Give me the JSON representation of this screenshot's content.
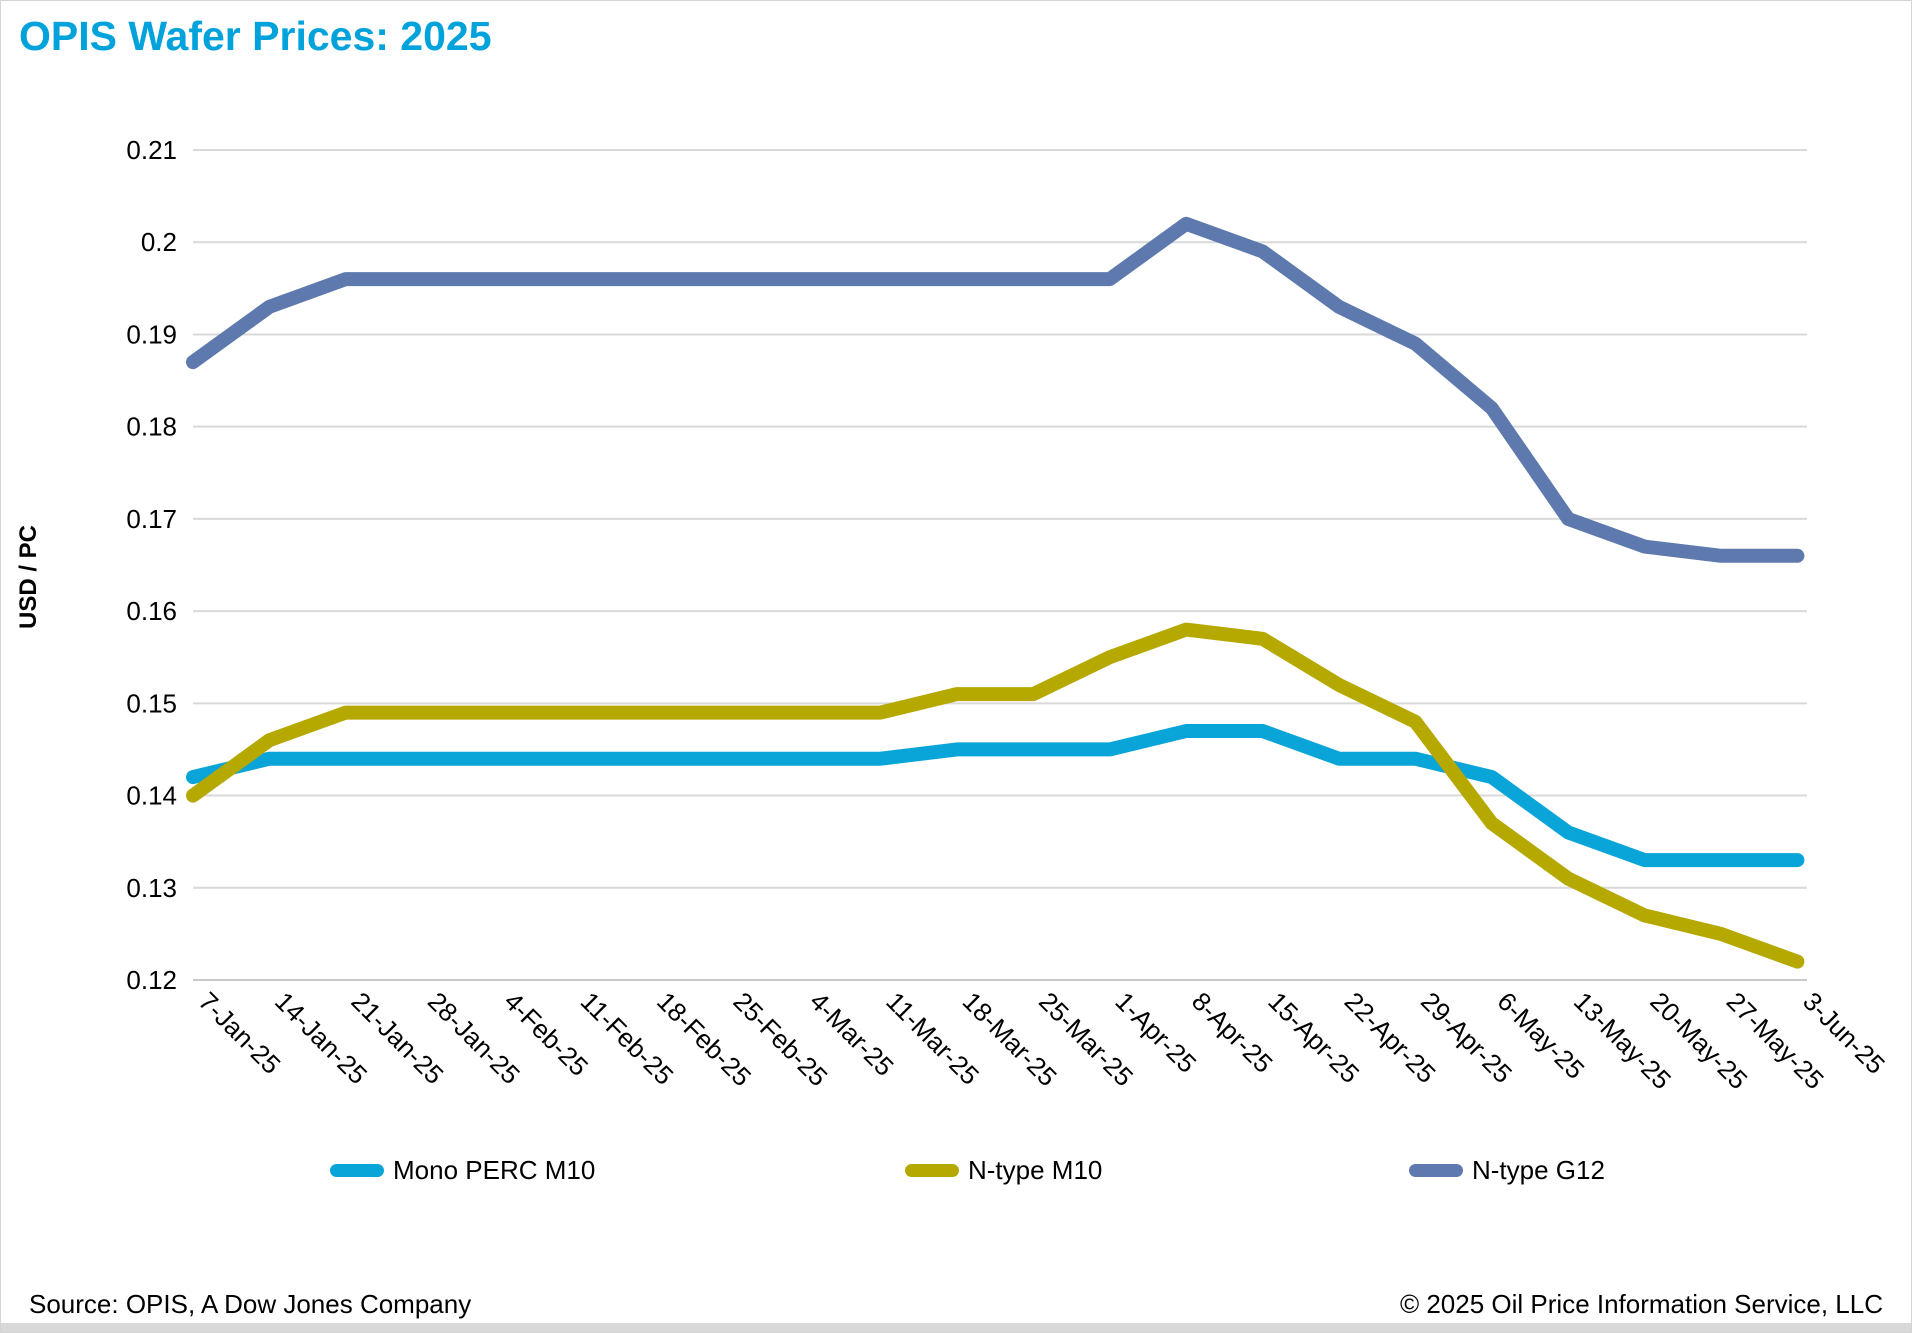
{
  "page": {
    "title": "OPIS Wafer Prices: 2025",
    "footer_left": "Source: OPIS, A Dow Jones Company",
    "footer_right": "© 2025 Oil Price Information Service, LLC",
    "title_color": "#00A2DC"
  },
  "chart_data": {
    "type": "line",
    "title": "OPIS Wafer Prices: 2025",
    "xlabel": "",
    "ylabel": "USD / PC",
    "ylim": [
      0.12,
      0.21
    ],
    "grid": "horizontal",
    "legend_position": "bottom",
    "gridline_color": "#d9d9d9",
    "y_ticks": [
      "0.21",
      "0.2",
      "0.19",
      "0.18",
      "0.17",
      "0.16",
      "0.15",
      "0.14",
      "0.13",
      "0.12"
    ],
    "categories": [
      "7-Jan-25",
      "14-Jan-25",
      "21-Jan-25",
      "28-Jan-25",
      "4-Feb-25",
      "11-Feb-25",
      "18-Feb-25",
      "25-Feb-25",
      "4-Mar-25",
      "11-Mar-25",
      "18-Mar-25",
      "25-Mar-25",
      "1-Apr-25",
      "8-Apr-25",
      "15-Apr-25",
      "22-Apr-25",
      "29-Apr-25",
      "6-May-25",
      "13-May-25",
      "20-May-25",
      "27-May-25",
      "3-Jun-25"
    ],
    "series": [
      {
        "name": "Mono PERC M10",
        "color": "#09A4D8",
        "values": [
          0.142,
          0.144,
          0.144,
          0.144,
          0.144,
          0.144,
          0.144,
          0.144,
          0.144,
          0.144,
          0.145,
          0.145,
          0.145,
          0.147,
          0.147,
          0.144,
          0.144,
          0.142,
          0.136,
          0.133,
          0.133,
          0.133
        ]
      },
      {
        "name": "N-type M10",
        "color": "#B5A900",
        "values": [
          0.14,
          0.146,
          0.149,
          0.149,
          0.149,
          0.149,
          0.149,
          0.149,
          0.149,
          0.149,
          0.151,
          0.151,
          0.155,
          0.158,
          0.157,
          0.152,
          0.148,
          0.137,
          0.131,
          0.127,
          0.125,
          0.122
        ]
      },
      {
        "name": "N-type G12",
        "color": "#5E79AD",
        "values": [
          0.187,
          0.193,
          0.196,
          0.196,
          0.196,
          0.196,
          0.196,
          0.196,
          0.196,
          0.196,
          0.196,
          0.196,
          0.196,
          0.202,
          0.199,
          0.193,
          0.189,
          0.182,
          0.17,
          0.167,
          0.166,
          0.166
        ]
      }
    ]
  }
}
